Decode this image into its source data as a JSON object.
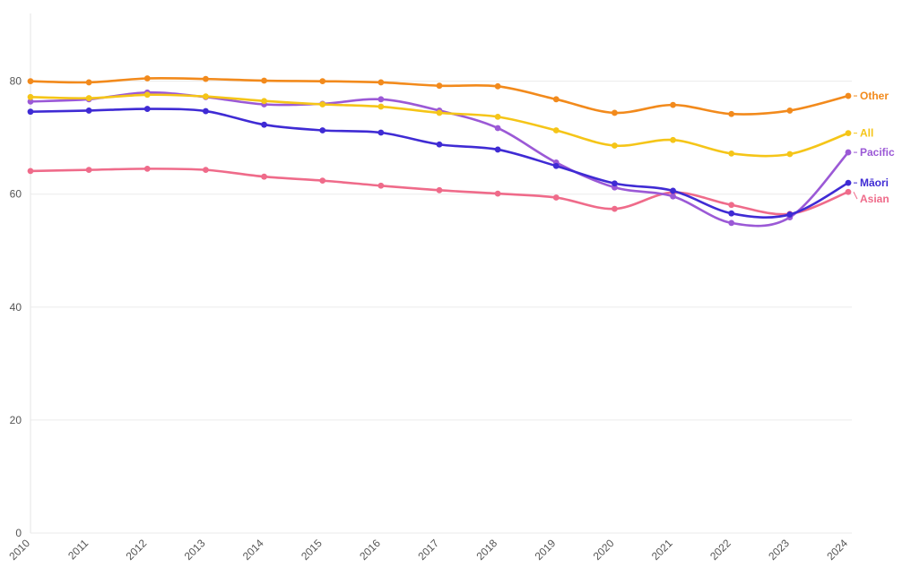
{
  "chart_data": {
    "type": "line",
    "title": "",
    "xlabel": "",
    "ylabel": "",
    "x": [
      "2010",
      "2011",
      "2012",
      "2013",
      "2014",
      "2015",
      "2016",
      "2017",
      "2018",
      "2019",
      "2020",
      "2021",
      "2022",
      "2023",
      "2024"
    ],
    "ylim": [
      0,
      92
    ],
    "yticks": [
      "0",
      "20",
      "40",
      "60",
      "80"
    ],
    "grid": true,
    "legend": "direct-labels-right",
    "series": [
      {
        "name": "Other",
        "color": "#f28a1c",
        "values": [
          80.0,
          79.8,
          80.5,
          80.4,
          80.1,
          80.0,
          79.8,
          79.2,
          79.1,
          76.8,
          74.4,
          75.8,
          74.2,
          74.8,
          77.4
        ]
      },
      {
        "name": "All",
        "color": "#f5c518",
        "values": [
          77.2,
          77.0,
          77.6,
          77.3,
          76.5,
          75.9,
          75.5,
          74.4,
          73.7,
          71.3,
          68.6,
          69.6,
          67.2,
          67.1,
          70.8
        ]
      },
      {
        "name": "Pacific",
        "color": "#9b59d6",
        "values": [
          76.4,
          76.8,
          78.0,
          77.2,
          75.9,
          76.0,
          76.8,
          74.8,
          71.7,
          65.6,
          61.2,
          59.6,
          54.9,
          55.9,
          67.4
        ]
      },
      {
        "name": "Māori",
        "color": "#3f2bd4",
        "values": [
          74.6,
          74.8,
          75.1,
          74.7,
          72.3,
          71.3,
          70.9,
          68.8,
          67.9,
          65.0,
          61.9,
          60.6,
          56.6,
          56.4,
          62.0
        ]
      },
      {
        "name": "Asian",
        "color": "#ef6b8a",
        "values": [
          64.1,
          64.3,
          64.5,
          64.3,
          63.1,
          62.4,
          61.5,
          60.7,
          60.1,
          59.4,
          57.4,
          60.3,
          58.1,
          56.5,
          60.4
        ]
      }
    ]
  }
}
